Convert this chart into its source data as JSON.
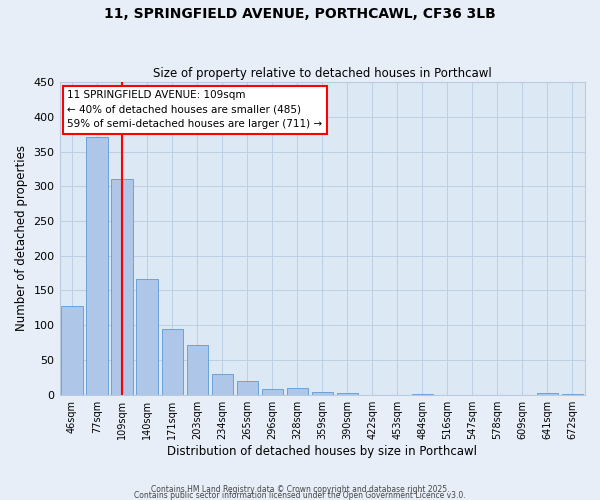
{
  "title_line1": "11, SPRINGFIELD AVENUE, PORTHCAWL, CF36 3LB",
  "title_line2": "Size of property relative to detached houses in Porthcawl",
  "xlabel": "Distribution of detached houses by size in Porthcawl",
  "ylabel": "Number of detached properties",
  "bar_labels": [
    "46sqm",
    "77sqm",
    "109sqm",
    "140sqm",
    "171sqm",
    "203sqm",
    "234sqm",
    "265sqm",
    "296sqm",
    "328sqm",
    "359sqm",
    "390sqm",
    "422sqm",
    "453sqm",
    "484sqm",
    "516sqm",
    "547sqm",
    "578sqm",
    "609sqm",
    "641sqm",
    "672sqm"
  ],
  "bar_values": [
    127,
    371,
    310,
    167,
    95,
    71,
    30,
    20,
    8,
    9,
    4,
    2,
    0,
    0,
    1,
    0,
    0,
    0,
    0,
    2,
    1
  ],
  "bar_color": "#aec6e8",
  "bar_edge_color": "#5b9bd5",
  "background_color": "#dce9f5",
  "fig_background_color": "#e8eef8",
  "grid_color": "#b8cce0",
  "vline_x": 2,
  "vline_color": "red",
  "annotation_line1": "11 SPRINGFIELD AVENUE: 109sqm",
  "annotation_line2": "← 40% of detached houses are smaller (485)",
  "annotation_line3": "59% of semi-detached houses are larger (711) →",
  "ylim": [
    0,
    450
  ],
  "yticks": [
    0,
    50,
    100,
    150,
    200,
    250,
    300,
    350,
    400,
    450
  ],
  "footer_line1": "Contains HM Land Registry data © Crown copyright and database right 2025.",
  "footer_line2": "Contains public sector information licensed under the Open Government Licence v3.0."
}
